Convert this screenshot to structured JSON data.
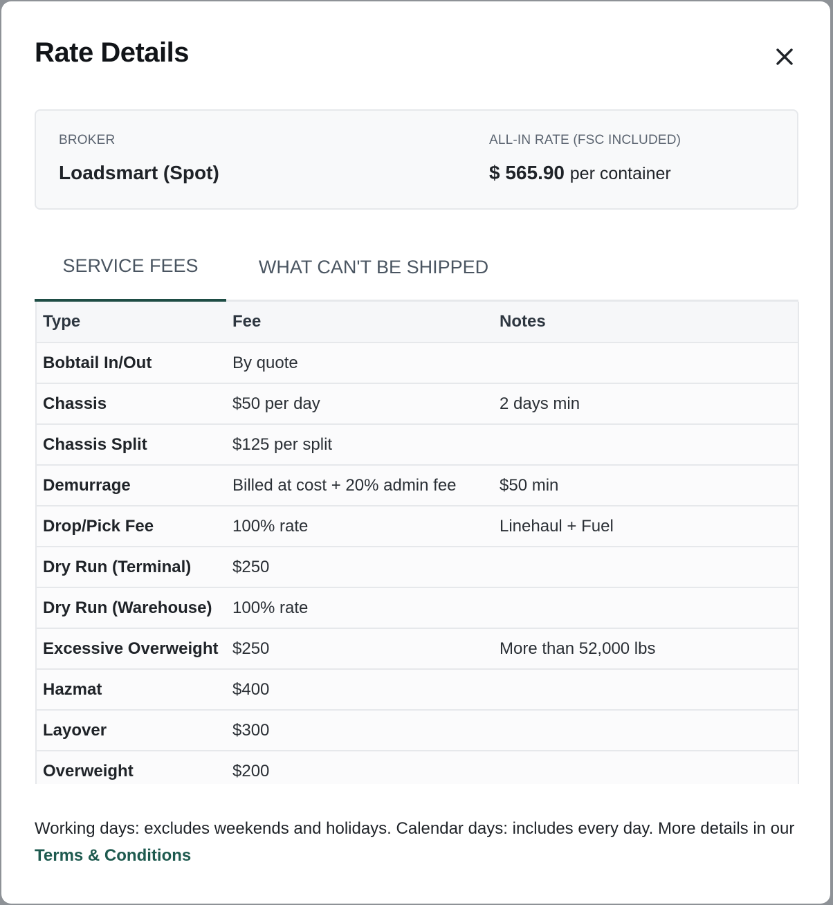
{
  "modal": {
    "title": "Rate Details",
    "close_icon": "close-icon"
  },
  "summary": {
    "broker_label": "BROKER",
    "broker_value": "Loadsmart (Spot)",
    "rate_label": "ALL-IN RATE (FSC INCLUDED)",
    "rate_value": "$ 565.90",
    "rate_unit": "per container"
  },
  "tabs": [
    {
      "label": "SERVICE FEES",
      "active": true
    },
    {
      "label": "WHAT CAN'T BE SHIPPED",
      "active": false
    }
  ],
  "table": {
    "headers": [
      "Type",
      "Fee",
      "Notes"
    ],
    "rows": [
      {
        "type": "Bobtail In/Out",
        "fee": "By quote",
        "notes": ""
      },
      {
        "type": "Chassis",
        "fee": "$50 per day",
        "notes": "2 days min"
      },
      {
        "type": "Chassis Split",
        "fee": "$125 per split",
        "notes": ""
      },
      {
        "type": "Demurrage",
        "fee": "Billed at cost + 20% admin fee",
        "notes": "$50 min"
      },
      {
        "type": "Drop/Pick Fee",
        "fee": "100% rate",
        "notes": "Linehaul + Fuel"
      },
      {
        "type": "Dry Run (Terminal)",
        "fee": "$250",
        "notes": ""
      },
      {
        "type": "Dry Run (Warehouse)",
        "fee": "100% rate",
        "notes": ""
      },
      {
        "type": "Excessive Overweight",
        "fee": "$250",
        "notes": "More than 52,000 lbs"
      },
      {
        "type": "Hazmat",
        "fee": "$400",
        "notes": ""
      },
      {
        "type": "Layover",
        "fee": "$300",
        "notes": ""
      },
      {
        "type": "Overweight",
        "fee": "$200",
        "notes": ""
      }
    ]
  },
  "footer": {
    "text": "Working days: excludes weekends and holidays. Calendar days: includes every day. More details in our ",
    "link": "Terms & Conditions"
  },
  "colors": {
    "accent": "#1e4d45",
    "link": "#1e5a4f",
    "backdrop": "#8e9297"
  }
}
